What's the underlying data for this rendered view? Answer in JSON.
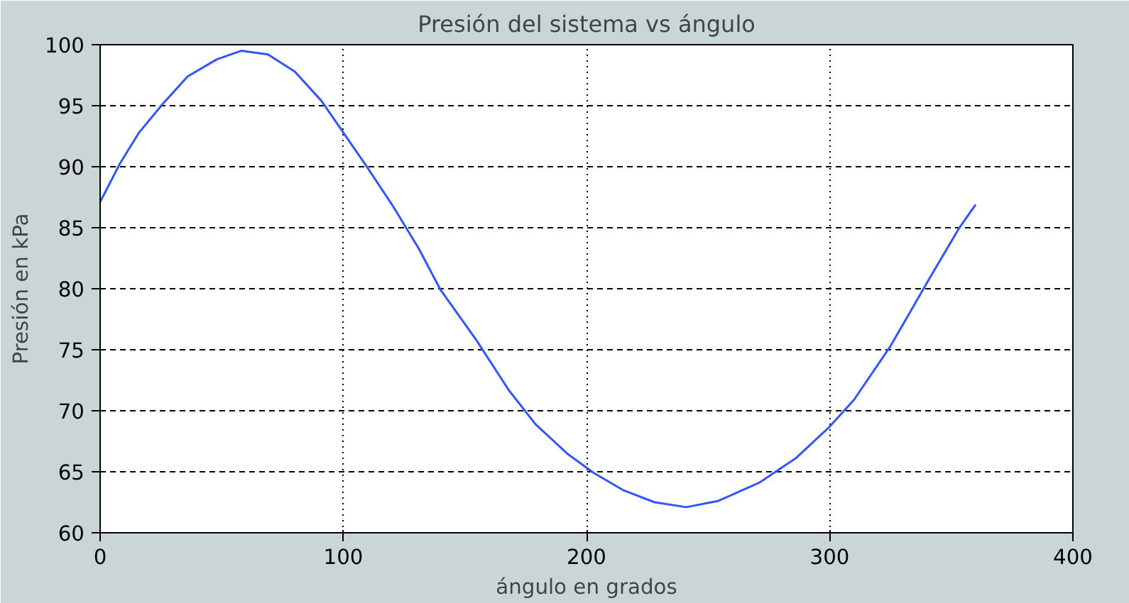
{
  "chart_data": {
    "type": "line",
    "title": "Presión del sistema vs ángulo",
    "xlabel": "ángulo en grados",
    "ylabel": "Presión en kPa",
    "xlim": [
      0,
      400
    ],
    "xticks": [
      0,
      100,
      200,
      300,
      400
    ],
    "ylim": [
      60,
      100
    ],
    "yticks": [
      60,
      65,
      70,
      75,
      80,
      85,
      90,
      95,
      100
    ],
    "grid": true,
    "line_style": "solid",
    "series": [
      {
        "color": "#3355ff",
        "x": [
          0,
          8,
          16,
          26,
          36,
          48,
          58,
          69,
          80,
          91,
          100,
          109,
          120,
          131,
          140,
          155,
          168,
          179,
          192,
          203,
          215,
          228,
          241,
          254,
          271,
          286,
          300,
          310,
          325,
          340,
          353,
          360
        ],
        "values": [
          87.1,
          90.2,
          92.8,
          95.2,
          97.4,
          98.8,
          99.5,
          99.2,
          97.8,
          95.4,
          92.8,
          90.2,
          86.9,
          83.3,
          79.9,
          75.7,
          71.7,
          68.9,
          66.5,
          64.9,
          63.5,
          62.5,
          62.1,
          62.6,
          64.1,
          66.1,
          68.7,
          70.9,
          75.3,
          80.5,
          84.9,
          86.9
        ]
      }
    ]
  }
}
